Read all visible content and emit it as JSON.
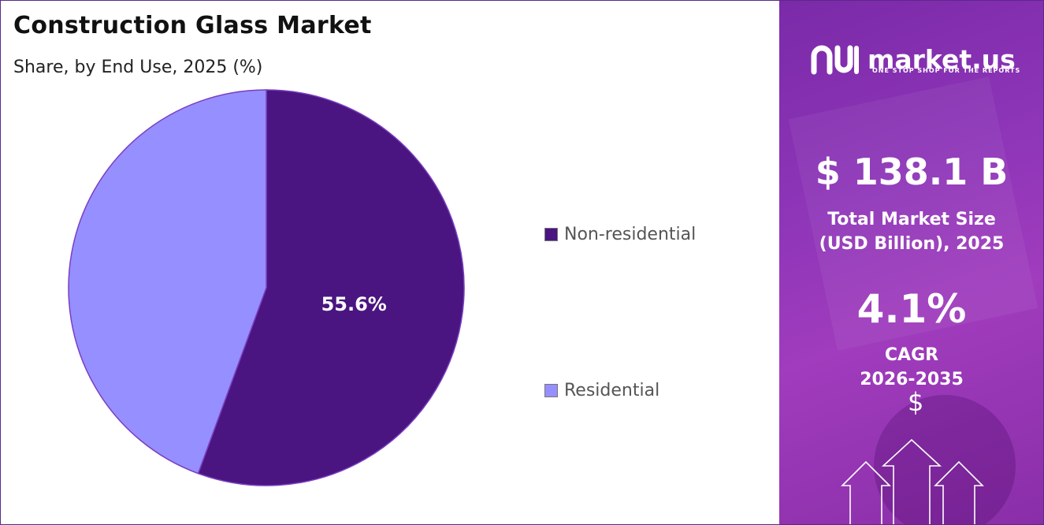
{
  "title": "Construction Glass Market",
  "subtitle": "Share, by End Use, 2025 (%)",
  "chart_data": {
    "type": "pie",
    "title": "Construction Glass Market",
    "subtitle": "Share, by End Use, 2025 (%)",
    "categories": [
      "Non-residential",
      "Residential"
    ],
    "values": [
      55.6,
      44.4
    ],
    "data_labels": [
      "55.6%",
      ""
    ],
    "colors": [
      "#4a1580",
      "#968fff"
    ],
    "legend_placement": "right"
  },
  "side_panel": {
    "logo_name": "market.us",
    "logo_tagline": "ONE STOP SHOP FOR THE REPORTS",
    "market_size": "$ 138.1 B",
    "market_size_label_line1": "Total Market Size",
    "market_size_label_line2": "(USD Billion), 2025",
    "cagr_value": "4.1%",
    "cagr_label_line1": "CAGR",
    "cagr_label_line2": "2026-2035",
    "dollar_symbol": "$",
    "icons": [
      "market-us-logo-icon",
      "dollar-icon",
      "up-arrow-icon"
    ],
    "background_color": "#8e35b8"
  }
}
